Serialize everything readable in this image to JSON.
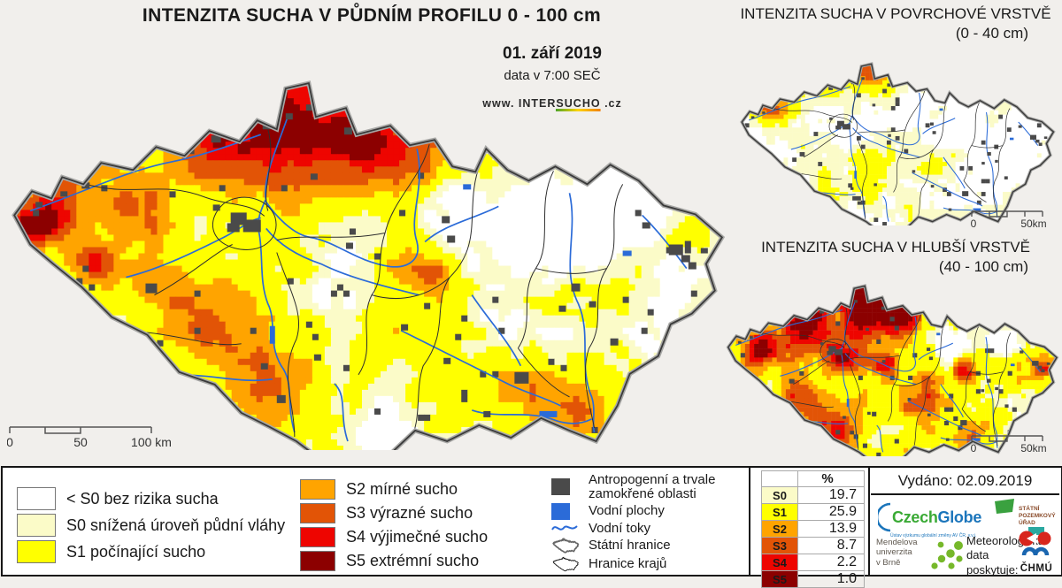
{
  "main_map": {
    "title": "INTENZITA SUCHA V PŮDNÍM PROFILU 0 - 100 cm",
    "date": "01. září 2019",
    "time_note": "data v 7:00 SEČ",
    "website": {
      "prefix": "www.",
      "name_plain": "INTER",
      "name_underlined": "SUCHO",
      "suffix": ".cz"
    },
    "scalebar": {
      "zero": "0",
      "mid": "50",
      "end": "100 km"
    }
  },
  "surface_map": {
    "title": "INTENZITA SUCHA V POVRCHOVÉ VRSTVĚ",
    "subtitle": "(0 - 40 cm)",
    "scalebar": {
      "zero": "0",
      "end": "50km"
    }
  },
  "deep_map": {
    "title": "INTENZITA SUCHA V HLUBŠÍ VRSTVĚ",
    "subtitle": "(40 - 100 cm)",
    "scalebar": {
      "zero": "0",
      "end": "50km"
    }
  },
  "legend": {
    "drought_classes_col1": [
      {
        "label": "< S0 bez rizika sucha",
        "color": "#ffffff"
      },
      {
        "label": "S0 snížená úroveň půdní vláhy",
        "color": "#fbfbc8"
      },
      {
        "label": "S1 počínající sucho",
        "color": "#ffff00"
      }
    ],
    "drought_classes_col2": [
      {
        "label": "S2 mírné sucho",
        "color": "#ffa400"
      },
      {
        "label": "S3 výrazné sucho",
        "color": "#e25406"
      },
      {
        "label": "S4 výjimečné sucho",
        "color": "#ee0500"
      },
      {
        "label": "S5 extrémní sucho",
        "color": "#8c0000"
      }
    ],
    "symbols": [
      {
        "label": "Antropogenní a trvale\nzamokřené oblasti",
        "icon": "square",
        "color": "#4a4a4a"
      },
      {
        "label": "Vodní plochy",
        "icon": "square",
        "color": "#2b6bd8"
      },
      {
        "label": "Vodní toky",
        "icon": "river-line",
        "color": "#2b6bd8"
      },
      {
        "label": "Státní hranice",
        "icon": "state-outline",
        "color": "#666666"
      },
      {
        "label": "Hranice krajů",
        "icon": "region-outline",
        "color": "#111111"
      }
    ]
  },
  "stats_table": {
    "header_pct": "%",
    "rows": [
      {
        "code": "S0",
        "value": "19.7",
        "color": "#fbfbc8"
      },
      {
        "code": "S1",
        "value": "25.9",
        "color": "#ffff00"
      },
      {
        "code": "S2",
        "value": "13.9",
        "color": "#ffa400"
      },
      {
        "code": "S3",
        "value": "8.7",
        "color": "#e25406"
      },
      {
        "code": "S4",
        "value": "2.2",
        "color": "#ee0500"
      },
      {
        "code": "S5",
        "value": "1.0",
        "color": "#8c0000"
      }
    ]
  },
  "issued": {
    "text": "Vydáno: 02.09.2019"
  },
  "credits": {
    "czechglobe": {
      "part1": "Czech",
      "part2": "Globe",
      "tagline": "Ústav výzkumu globální změny AV ČR, v.v.i."
    },
    "spu": {
      "line1": "STÁTNÍ",
      "line2": "POZEMKOVÝ",
      "line3": "ÚŘAD"
    },
    "mendelu": {
      "line1": "Mendelova",
      "line2": "univerzita",
      "line3": "v Brně"
    },
    "meteo_note": {
      "line1": "Meteorologická",
      "line2": "data",
      "line3": "poskytuje:"
    },
    "chmu": "ČHMÚ"
  },
  "colors": {
    "water": "#2b6bd8",
    "city": "#4a4a4a",
    "state_border": "#3a3a3a",
    "s0": "#fbfbc8",
    "s1": "#ffff00",
    "s2": "#ffa400",
    "s3": "#e25406",
    "s4": "#ee0500",
    "s5": "#8c0000"
  }
}
